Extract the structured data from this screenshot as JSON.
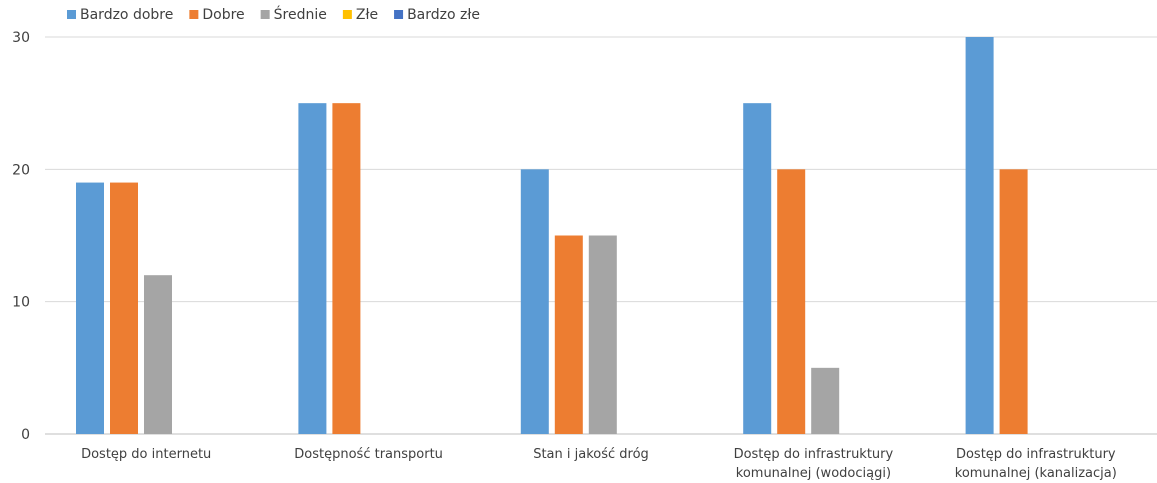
{
  "chart_data": {
    "type": "bar",
    "title": "",
    "xlabel": "",
    "ylabel": "",
    "ylim": [
      0,
      30
    ],
    "yticks": [
      0,
      10,
      20,
      30
    ],
    "grid": true,
    "legend_position": "top-left",
    "categories": [
      [
        "Dostęp do internetu"
      ],
      [
        "Dostępność transportu"
      ],
      [
        "Stan i jakość dróg"
      ],
      [
        "Dostęp do infrastruktury",
        "komunalnej (wodociągi)"
      ],
      [
        "Dostęp do infrastruktury",
        "komunalnej (kanalizacja)"
      ]
    ],
    "series": [
      {
        "name": "Bardzo dobre",
        "color": "#5B9BD5",
        "values": [
          19,
          25,
          20,
          25,
          30
        ]
      },
      {
        "name": "Dobre",
        "color": "#ED7D31",
        "values": [
          19,
          25,
          15,
          20,
          20
        ]
      },
      {
        "name": "Średnie",
        "color": "#A5A5A5",
        "values": [
          12,
          0,
          15,
          5,
          0
        ]
      },
      {
        "name": "Złe",
        "color": "#FFC000",
        "values": [
          0,
          0,
          0,
          0,
          0
        ]
      },
      {
        "name": "Bardzo złe",
        "color": "#4472C4",
        "values": [
          0,
          0,
          0,
          0,
          0
        ]
      }
    ]
  }
}
